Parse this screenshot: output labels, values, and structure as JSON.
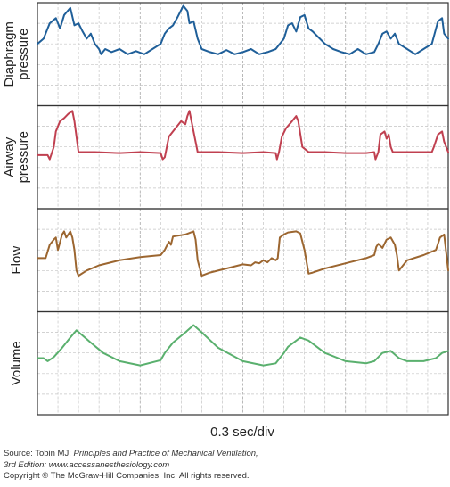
{
  "chart_data": [
    {
      "type": "line",
      "ylabel": "Diaphragm pressure",
      "color": "#1f5f99",
      "xlim": [
        0,
        1
      ],
      "ylim": [
        0,
        1
      ],
      "grid": true,
      "x": [
        0.0,
        0.015,
        0.03,
        0.045,
        0.055,
        0.065,
        0.08,
        0.09,
        0.1,
        0.11,
        0.12,
        0.13,
        0.14,
        0.15,
        0.155,
        0.165,
        0.18,
        0.2,
        0.22,
        0.24,
        0.26,
        0.28,
        0.3,
        0.31,
        0.32,
        0.33,
        0.34,
        0.355,
        0.365,
        0.37,
        0.38,
        0.39,
        0.4,
        0.42,
        0.44,
        0.46,
        0.48,
        0.5,
        0.52,
        0.54,
        0.56,
        0.58,
        0.6,
        0.61,
        0.62,
        0.63,
        0.64,
        0.65,
        0.66,
        0.67,
        0.68,
        0.7,
        0.72,
        0.74,
        0.76,
        0.78,
        0.8,
        0.82,
        0.83,
        0.84,
        0.85,
        0.86,
        0.87,
        0.88,
        0.9,
        0.92,
        0.94,
        0.96,
        0.975,
        0.985,
        0.99,
        1.0
      ],
      "y": [
        0.6,
        0.65,
        0.8,
        0.85,
        0.75,
        0.88,
        0.95,
        0.78,
        0.8,
        0.72,
        0.65,
        0.7,
        0.6,
        0.55,
        0.5,
        0.55,
        0.52,
        0.55,
        0.5,
        0.53,
        0.5,
        0.55,
        0.6,
        0.7,
        0.75,
        0.78,
        0.85,
        0.97,
        0.92,
        0.8,
        0.82,
        0.65,
        0.55,
        0.52,
        0.5,
        0.54,
        0.5,
        0.52,
        0.55,
        0.5,
        0.52,
        0.55,
        0.65,
        0.78,
        0.8,
        0.72,
        0.86,
        0.88,
        0.75,
        0.72,
        0.68,
        0.6,
        0.55,
        0.52,
        0.5,
        0.55,
        0.5,
        0.52,
        0.6,
        0.7,
        0.72,
        0.65,
        0.7,
        0.6,
        0.55,
        0.5,
        0.55,
        0.6,
        0.82,
        0.85,
        0.7,
        0.65
      ]
    },
    {
      "type": "line",
      "ylabel": "Airway pressure",
      "color": "#c04050",
      "xlim": [
        0,
        1
      ],
      "ylim": [
        0,
        1
      ],
      "grid": true,
      "x": [
        0.0,
        0.025,
        0.03,
        0.04,
        0.045,
        0.055,
        0.065,
        0.075,
        0.085,
        0.09,
        0.1,
        0.14,
        0.2,
        0.25,
        0.3,
        0.305,
        0.31,
        0.32,
        0.33,
        0.35,
        0.36,
        0.365,
        0.37,
        0.375,
        0.39,
        0.44,
        0.5,
        0.55,
        0.58,
        0.583,
        0.588,
        0.595,
        0.605,
        0.62,
        0.63,
        0.635,
        0.645,
        0.66,
        0.7,
        0.75,
        0.8,
        0.82,
        0.823,
        0.83,
        0.835,
        0.845,
        0.85,
        0.855,
        0.86,
        0.865,
        0.88,
        0.92,
        0.95,
        0.96,
        0.965,
        0.975,
        0.985,
        0.99,
        1.0
      ],
      "y": [
        0.52,
        0.52,
        0.48,
        0.6,
        0.75,
        0.85,
        0.88,
        0.92,
        0.95,
        0.85,
        0.55,
        0.55,
        0.54,
        0.55,
        0.54,
        0.48,
        0.5,
        0.7,
        0.75,
        0.85,
        0.82,
        0.9,
        0.95,
        0.85,
        0.55,
        0.55,
        0.54,
        0.55,
        0.54,
        0.48,
        0.55,
        0.7,
        0.78,
        0.85,
        0.9,
        0.85,
        0.6,
        0.55,
        0.55,
        0.54,
        0.54,
        0.55,
        0.48,
        0.55,
        0.72,
        0.75,
        0.68,
        0.72,
        0.6,
        0.55,
        0.55,
        0.55,
        0.55,
        0.55,
        0.6,
        0.72,
        0.75,
        0.65,
        0.55
      ]
    },
    {
      "type": "line",
      "ylabel": "Flow",
      "color": "#9c6630",
      "xlim": [
        0,
        1
      ],
      "ylim": [
        0,
        1
      ],
      "grid": true,
      "x": [
        0.0,
        0.02,
        0.03,
        0.04,
        0.045,
        0.05,
        0.06,
        0.065,
        0.07,
        0.08,
        0.085,
        0.09,
        0.095,
        0.1,
        0.12,
        0.15,
        0.2,
        0.25,
        0.3,
        0.31,
        0.32,
        0.325,
        0.33,
        0.36,
        0.38,
        0.385,
        0.39,
        0.4,
        0.42,
        0.46,
        0.5,
        0.52,
        0.53,
        0.54,
        0.55,
        0.56,
        0.57,
        0.58,
        0.585,
        0.59,
        0.6,
        0.61,
        0.63,
        0.64,
        0.65,
        0.66,
        0.67,
        0.7,
        0.75,
        0.8,
        0.82,
        0.825,
        0.83,
        0.84,
        0.85,
        0.86,
        0.87,
        0.875,
        0.88,
        0.9,
        0.94,
        0.97,
        0.98,
        0.99,
        1.0
      ],
      "y": [
        0.52,
        0.52,
        0.65,
        0.7,
        0.72,
        0.6,
        0.75,
        0.78,
        0.72,
        0.78,
        0.72,
        0.6,
        0.4,
        0.35,
        0.4,
        0.45,
        0.5,
        0.53,
        0.55,
        0.6,
        0.68,
        0.65,
        0.73,
        0.75,
        0.78,
        0.7,
        0.5,
        0.35,
        0.38,
        0.42,
        0.46,
        0.45,
        0.48,
        0.47,
        0.5,
        0.48,
        0.52,
        0.5,
        0.52,
        0.72,
        0.75,
        0.77,
        0.78,
        0.76,
        0.6,
        0.37,
        0.38,
        0.42,
        0.47,
        0.52,
        0.55,
        0.63,
        0.66,
        0.62,
        0.7,
        0.72,
        0.65,
        0.55,
        0.4,
        0.5,
        0.55,
        0.6,
        0.72,
        0.75,
        0.4
      ]
    },
    {
      "type": "line",
      "ylabel": "Volume",
      "color": "#5ab06e",
      "xlim": [
        0,
        1
      ],
      "ylim": [
        0,
        1
      ],
      "grid": true,
      "x": [
        0.0,
        0.015,
        0.025,
        0.04,
        0.06,
        0.08,
        0.095,
        0.13,
        0.16,
        0.2,
        0.25,
        0.3,
        0.31,
        0.33,
        0.36,
        0.38,
        0.4,
        0.44,
        0.5,
        0.55,
        0.58,
        0.6,
        0.61,
        0.64,
        0.66,
        0.7,
        0.75,
        0.8,
        0.82,
        0.84,
        0.86,
        0.88,
        0.9,
        0.94,
        0.97,
        0.985,
        1.0
      ],
      "y": [
        0.55,
        0.55,
        0.52,
        0.56,
        0.65,
        0.75,
        0.82,
        0.7,
        0.6,
        0.52,
        0.48,
        0.53,
        0.6,
        0.7,
        0.8,
        0.87,
        0.8,
        0.65,
        0.52,
        0.48,
        0.5,
        0.6,
        0.66,
        0.75,
        0.72,
        0.6,
        0.52,
        0.5,
        0.52,
        0.6,
        0.62,
        0.55,
        0.52,
        0.52,
        0.55,
        0.6,
        0.62
      ]
    }
  ],
  "xlabel": "0.3 sec/div",
  "source": {
    "prefix": "Source: Tobin MJ: ",
    "title": "Principles and Practice of Mechanical Ventilation,",
    "edition": "3rd Edition: www.accessanesthesiology.com",
    "copyright": "Copyright © The McGraw-Hill Companies, Inc. All rights reserved."
  }
}
